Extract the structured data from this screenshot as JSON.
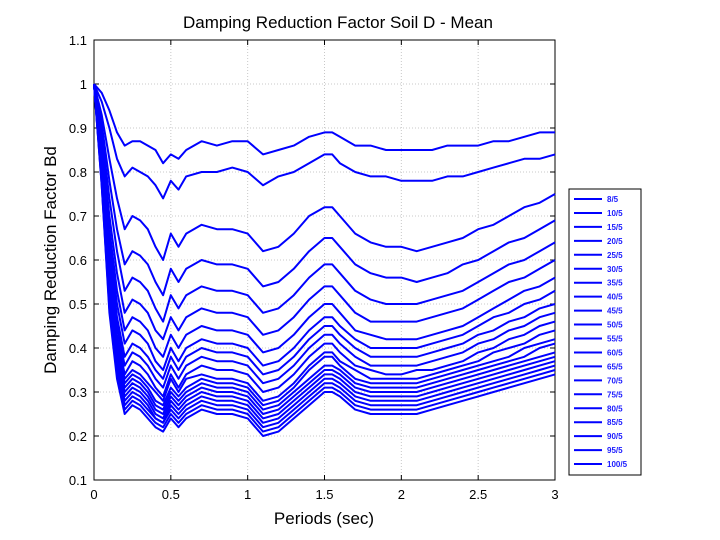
{
  "chart_data": {
    "type": "line",
    "title": "Damping Reduction Factor Soil D - Mean",
    "xlabel": "Periods (sec)",
    "ylabel": "Damping Reduction Factor Bd",
    "xlim": [
      0,
      3
    ],
    "ylim": [
      0.1,
      1.1
    ],
    "xticks": [
      "0",
      "0.5",
      "1",
      "1.5",
      "2",
      "2.5",
      "3"
    ],
    "yticks": [
      "0.1",
      "0.2",
      "0.3",
      "0.4",
      "0.5",
      "0.6",
      "0.7",
      "0.8",
      "0.9",
      "1",
      "1.1"
    ],
    "grid": true,
    "legend_position": "right",
    "line_color": "#0000ff",
    "x": [
      0,
      0.05,
      0.1,
      0.15,
      0.2,
      0.25,
      0.3,
      0.35,
      0.4,
      0.45,
      0.5,
      0.55,
      0.6,
      0.7,
      0.8,
      0.9,
      1.0,
      1.1,
      1.2,
      1.3,
      1.4,
      1.5,
      1.55,
      1.6,
      1.7,
      1.8,
      1.9,
      2.0,
      2.1,
      2.2,
      2.3,
      2.4,
      2.5,
      2.6,
      2.7,
      2.8,
      2.9,
      3.0
    ],
    "series": [
      {
        "name": "8/5",
        "values": [
          1.0,
          0.98,
          0.94,
          0.89,
          0.86,
          0.87,
          0.87,
          0.86,
          0.85,
          0.82,
          0.84,
          0.83,
          0.85,
          0.87,
          0.86,
          0.87,
          0.87,
          0.84,
          0.85,
          0.86,
          0.88,
          0.89,
          0.89,
          0.88,
          0.86,
          0.86,
          0.85,
          0.85,
          0.85,
          0.85,
          0.86,
          0.86,
          0.86,
          0.87,
          0.87,
          0.88,
          0.89,
          0.89
        ]
      },
      {
        "name": "10/5",
        "values": [
          1.0,
          0.96,
          0.9,
          0.83,
          0.79,
          0.81,
          0.8,
          0.79,
          0.77,
          0.74,
          0.78,
          0.76,
          0.79,
          0.8,
          0.8,
          0.81,
          0.8,
          0.77,
          0.79,
          0.8,
          0.82,
          0.84,
          0.84,
          0.82,
          0.8,
          0.79,
          0.79,
          0.78,
          0.78,
          0.78,
          0.79,
          0.79,
          0.8,
          0.81,
          0.82,
          0.83,
          0.83,
          0.84
        ]
      },
      {
        "name": "15/5",
        "values": [
          1.0,
          0.93,
          0.83,
          0.74,
          0.67,
          0.7,
          0.69,
          0.67,
          0.63,
          0.6,
          0.66,
          0.63,
          0.66,
          0.68,
          0.67,
          0.67,
          0.66,
          0.62,
          0.63,
          0.66,
          0.7,
          0.72,
          0.72,
          0.7,
          0.66,
          0.64,
          0.63,
          0.63,
          0.62,
          0.63,
          0.64,
          0.65,
          0.67,
          0.68,
          0.7,
          0.72,
          0.73,
          0.75
        ]
      },
      {
        "name": "20/5",
        "values": [
          1.0,
          0.91,
          0.78,
          0.67,
          0.59,
          0.62,
          0.61,
          0.59,
          0.55,
          0.52,
          0.58,
          0.55,
          0.58,
          0.6,
          0.59,
          0.59,
          0.58,
          0.54,
          0.55,
          0.58,
          0.62,
          0.65,
          0.65,
          0.63,
          0.59,
          0.57,
          0.56,
          0.56,
          0.55,
          0.56,
          0.57,
          0.59,
          0.6,
          0.62,
          0.64,
          0.65,
          0.67,
          0.69
        ]
      },
      {
        "name": "25/5",
        "values": [
          1.0,
          0.89,
          0.74,
          0.62,
          0.53,
          0.56,
          0.55,
          0.53,
          0.49,
          0.46,
          0.52,
          0.49,
          0.52,
          0.54,
          0.53,
          0.53,
          0.52,
          0.48,
          0.49,
          0.52,
          0.56,
          0.59,
          0.59,
          0.57,
          0.53,
          0.51,
          0.5,
          0.5,
          0.5,
          0.51,
          0.52,
          0.53,
          0.55,
          0.57,
          0.59,
          0.6,
          0.62,
          0.64
        ]
      },
      {
        "name": "30/5",
        "values": [
          1.0,
          0.87,
          0.7,
          0.57,
          0.48,
          0.51,
          0.5,
          0.48,
          0.44,
          0.42,
          0.47,
          0.44,
          0.47,
          0.49,
          0.48,
          0.48,
          0.47,
          0.43,
          0.44,
          0.47,
          0.51,
          0.54,
          0.54,
          0.52,
          0.48,
          0.46,
          0.46,
          0.46,
          0.46,
          0.47,
          0.48,
          0.49,
          0.51,
          0.53,
          0.55,
          0.56,
          0.58,
          0.6
        ]
      },
      {
        "name": "35/5",
        "values": [
          1.0,
          0.86,
          0.67,
          0.53,
          0.44,
          0.47,
          0.46,
          0.44,
          0.4,
          0.38,
          0.43,
          0.4,
          0.43,
          0.45,
          0.44,
          0.44,
          0.43,
          0.39,
          0.4,
          0.43,
          0.47,
          0.5,
          0.5,
          0.48,
          0.44,
          0.43,
          0.42,
          0.42,
          0.42,
          0.43,
          0.44,
          0.45,
          0.47,
          0.49,
          0.51,
          0.53,
          0.54,
          0.56
        ]
      },
      {
        "name": "40/5",
        "values": [
          1.0,
          0.85,
          0.64,
          0.5,
          0.41,
          0.44,
          0.43,
          0.41,
          0.37,
          0.35,
          0.4,
          0.37,
          0.4,
          0.42,
          0.41,
          0.41,
          0.4,
          0.36,
          0.37,
          0.4,
          0.44,
          0.47,
          0.47,
          0.45,
          0.42,
          0.4,
          0.4,
          0.4,
          0.4,
          0.41,
          0.42,
          0.43,
          0.45,
          0.47,
          0.48,
          0.5,
          0.51,
          0.53
        ]
      },
      {
        "name": "45/5",
        "values": [
          1.0,
          0.84,
          0.62,
          0.47,
          0.38,
          0.41,
          0.4,
          0.38,
          0.35,
          0.33,
          0.38,
          0.35,
          0.38,
          0.4,
          0.39,
          0.39,
          0.38,
          0.34,
          0.35,
          0.38,
          0.42,
          0.45,
          0.45,
          0.43,
          0.4,
          0.38,
          0.38,
          0.38,
          0.38,
          0.39,
          0.4,
          0.41,
          0.43,
          0.44,
          0.46,
          0.47,
          0.49,
          0.5
        ]
      },
      {
        "name": "50/5",
        "values": [
          1.0,
          0.83,
          0.6,
          0.45,
          0.36,
          0.39,
          0.38,
          0.36,
          0.33,
          0.31,
          0.36,
          0.33,
          0.36,
          0.38,
          0.37,
          0.37,
          0.36,
          0.32,
          0.33,
          0.36,
          0.4,
          0.43,
          0.43,
          0.41,
          0.38,
          0.36,
          0.36,
          0.36,
          0.36,
          0.37,
          0.38,
          0.39,
          0.41,
          0.42,
          0.44,
          0.45,
          0.47,
          0.48
        ]
      },
      {
        "name": "55/5",
        "values": [
          1.0,
          0.82,
          0.58,
          0.43,
          0.34,
          0.37,
          0.36,
          0.34,
          0.31,
          0.29,
          0.34,
          0.31,
          0.34,
          0.36,
          0.35,
          0.35,
          0.34,
          0.3,
          0.31,
          0.34,
          0.38,
          0.41,
          0.41,
          0.39,
          0.36,
          0.35,
          0.34,
          0.34,
          0.35,
          0.35,
          0.36,
          0.37,
          0.39,
          0.4,
          0.42,
          0.43,
          0.45,
          0.46
        ]
      },
      {
        "name": "60/5",
        "values": [
          1.0,
          0.81,
          0.56,
          0.41,
          0.33,
          0.35,
          0.34,
          0.32,
          0.3,
          0.28,
          0.33,
          0.3,
          0.33,
          0.34,
          0.33,
          0.33,
          0.32,
          0.28,
          0.29,
          0.32,
          0.36,
          0.39,
          0.39,
          0.37,
          0.35,
          0.33,
          0.33,
          0.33,
          0.33,
          0.34,
          0.35,
          0.36,
          0.37,
          0.39,
          0.4,
          0.41,
          0.43,
          0.44
        ]
      },
      {
        "name": "65/5",
        "values": [
          1.0,
          0.8,
          0.55,
          0.4,
          0.32,
          0.34,
          0.33,
          0.31,
          0.28,
          0.27,
          0.31,
          0.29,
          0.31,
          0.33,
          0.32,
          0.32,
          0.31,
          0.27,
          0.28,
          0.31,
          0.35,
          0.38,
          0.38,
          0.36,
          0.33,
          0.32,
          0.32,
          0.32,
          0.32,
          0.33,
          0.34,
          0.35,
          0.36,
          0.37,
          0.38,
          0.4,
          0.41,
          0.42
        ]
      },
      {
        "name": "70/5",
        "values": [
          1.0,
          0.8,
          0.54,
          0.39,
          0.31,
          0.33,
          0.32,
          0.3,
          0.27,
          0.26,
          0.3,
          0.28,
          0.3,
          0.32,
          0.31,
          0.31,
          0.3,
          0.26,
          0.27,
          0.3,
          0.33,
          0.36,
          0.36,
          0.35,
          0.32,
          0.31,
          0.31,
          0.31,
          0.31,
          0.32,
          0.33,
          0.34,
          0.35,
          0.36,
          0.37,
          0.38,
          0.4,
          0.41
        ]
      },
      {
        "name": "75/5",
        "values": [
          1.0,
          0.79,
          0.53,
          0.38,
          0.3,
          0.32,
          0.31,
          0.29,
          0.26,
          0.25,
          0.29,
          0.27,
          0.29,
          0.31,
          0.3,
          0.3,
          0.29,
          0.25,
          0.26,
          0.29,
          0.32,
          0.35,
          0.35,
          0.34,
          0.31,
          0.3,
          0.3,
          0.3,
          0.3,
          0.31,
          0.32,
          0.33,
          0.34,
          0.35,
          0.36,
          0.37,
          0.38,
          0.39
        ]
      },
      {
        "name": "80/5",
        "values": [
          1.0,
          0.79,
          0.52,
          0.37,
          0.29,
          0.31,
          0.3,
          0.28,
          0.25,
          0.24,
          0.28,
          0.26,
          0.28,
          0.3,
          0.29,
          0.29,
          0.28,
          0.24,
          0.25,
          0.28,
          0.31,
          0.34,
          0.34,
          0.33,
          0.3,
          0.29,
          0.29,
          0.29,
          0.29,
          0.3,
          0.31,
          0.32,
          0.33,
          0.34,
          0.35,
          0.36,
          0.37,
          0.38
        ]
      },
      {
        "name": "85/5",
        "values": [
          1.0,
          0.78,
          0.51,
          0.36,
          0.28,
          0.3,
          0.29,
          0.27,
          0.24,
          0.23,
          0.27,
          0.25,
          0.27,
          0.29,
          0.28,
          0.28,
          0.27,
          0.23,
          0.24,
          0.27,
          0.3,
          0.33,
          0.33,
          0.32,
          0.29,
          0.28,
          0.28,
          0.28,
          0.28,
          0.29,
          0.3,
          0.31,
          0.32,
          0.33,
          0.34,
          0.35,
          0.36,
          0.37
        ]
      },
      {
        "name": "90/5",
        "values": [
          1.0,
          0.78,
          0.5,
          0.35,
          0.27,
          0.29,
          0.28,
          0.26,
          0.24,
          0.23,
          0.26,
          0.24,
          0.26,
          0.28,
          0.27,
          0.27,
          0.26,
          0.22,
          0.23,
          0.26,
          0.29,
          0.32,
          0.32,
          0.31,
          0.28,
          0.27,
          0.27,
          0.27,
          0.27,
          0.28,
          0.29,
          0.3,
          0.31,
          0.32,
          0.33,
          0.34,
          0.35,
          0.36
        ]
      },
      {
        "name": "95/5",
        "values": [
          1.0,
          0.77,
          0.49,
          0.34,
          0.26,
          0.28,
          0.27,
          0.25,
          0.23,
          0.22,
          0.25,
          0.23,
          0.25,
          0.27,
          0.26,
          0.26,
          0.25,
          0.21,
          0.22,
          0.25,
          0.28,
          0.31,
          0.31,
          0.3,
          0.27,
          0.26,
          0.26,
          0.26,
          0.26,
          0.27,
          0.28,
          0.29,
          0.3,
          0.31,
          0.32,
          0.33,
          0.34,
          0.35
        ]
      },
      {
        "name": "100/5",
        "values": [
          1.0,
          0.77,
          0.48,
          0.33,
          0.25,
          0.27,
          0.26,
          0.24,
          0.22,
          0.21,
          0.24,
          0.22,
          0.24,
          0.26,
          0.25,
          0.25,
          0.24,
          0.2,
          0.21,
          0.24,
          0.27,
          0.3,
          0.3,
          0.29,
          0.26,
          0.25,
          0.25,
          0.25,
          0.25,
          0.26,
          0.27,
          0.28,
          0.29,
          0.3,
          0.31,
          0.32,
          0.33,
          0.34
        ]
      }
    ]
  }
}
